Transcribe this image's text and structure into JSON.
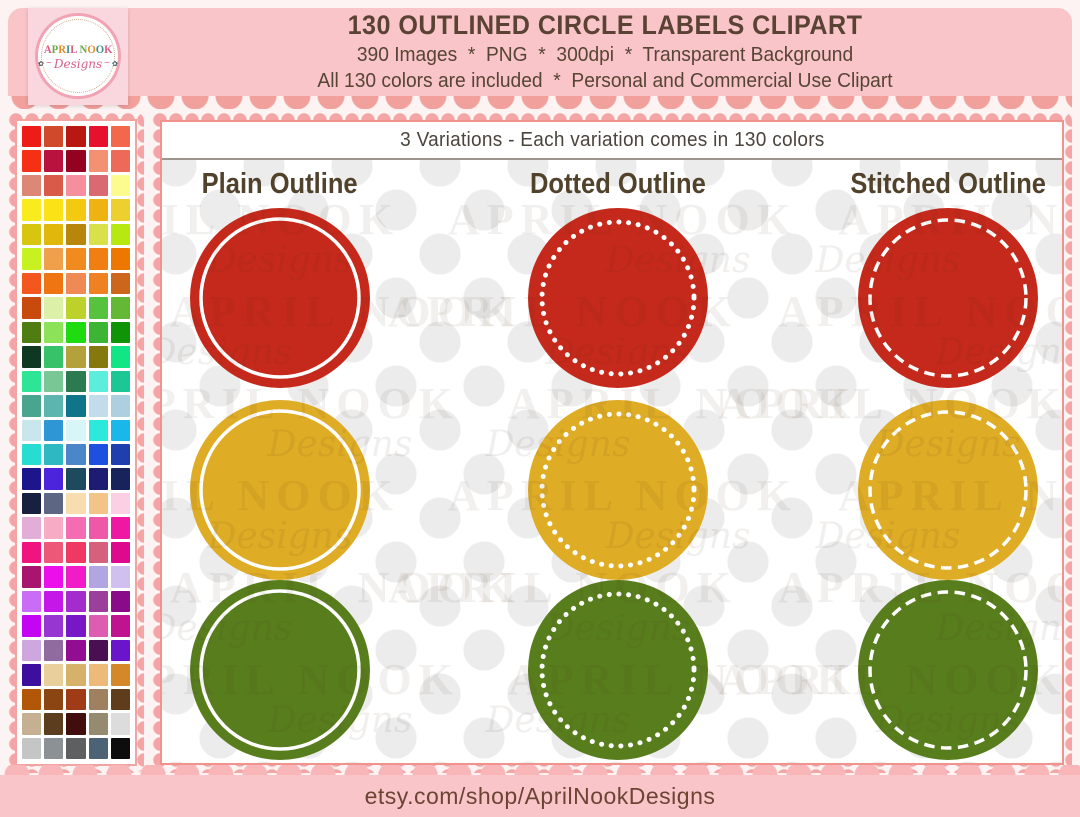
{
  "header": {
    "logo": {
      "name": "APRIL NOOK",
      "designs": "Designs",
      "flower": "✿",
      "swirl": "~",
      "letter_colors": [
        "#d95f87",
        "#6aa84f",
        "#e28e2b",
        "#3f8e8e"
      ]
    },
    "title": "130 OUTLINED CIRCLE LABELS CLIPART",
    "subtitle1": "390 Images  *  PNG  *  300dpi  *  Transparent Background",
    "subtitle2": "All 130 colors are included  *  Personal and Commercial Use Clipart"
  },
  "palette": {
    "columns": 5,
    "rows": 26,
    "colors": [
      "#ed1c16",
      "#d1492b",
      "#b91712",
      "#e8112d",
      "#f3684c",
      "#f53014",
      "#ba123e",
      "#930220",
      "#f29272",
      "#ee6a58",
      "#dd8877",
      "#da5a4a",
      "#f58f9e",
      "#d96a72",
      "#fbfb8e",
      "#f8ec1f",
      "#fbe216",
      "#f3c912",
      "#eeb211",
      "#edd02f",
      "#d8c50f",
      "#e0b80c",
      "#b8860b",
      "#d8e04a",
      "#b8e812",
      "#c8f122",
      "#f0a04a",
      "#f18a1f",
      "#f07e12",
      "#ee7700",
      "#f3571d",
      "#ee7511",
      "#f08a55",
      "#ef8122",
      "#cd661d",
      "#c84b0d",
      "#dcf0a8",
      "#bcd22a",
      "#56c23e",
      "#63b836",
      "#507d12",
      "#8ce35a",
      "#1fdc10",
      "#3cb434",
      "#0f9408",
      "#0e3822",
      "#37c168",
      "#b3a23c",
      "#85790e",
      "#12e586",
      "#2ee495",
      "#79c795",
      "#2b7a50",
      "#5beedd",
      "#1cc795",
      "#49a58d",
      "#5cb5ae",
      "#11758a",
      "#c3dcec",
      "#adcfe0",
      "#c8e6ec",
      "#2f96d6",
      "#d8f6f8",
      "#2ce9dc",
      "#1ab8ea",
      "#27dcd0",
      "#2eb9c2",
      "#4b87c8",
      "#1d50df",
      "#1f3fae",
      "#1c158c",
      "#4b24dc",
      "#1d4a5c",
      "#1d1c72",
      "#18235c",
      "#18203f",
      "#5d6683",
      "#f8ddb0",
      "#f3c488",
      "#fbd0e4",
      "#e2aed8",
      "#f8abc4",
      "#f46cb2",
      "#ef58a6",
      "#ee18a2",
      "#f0147e",
      "#ee5878",
      "#ee3a62",
      "#d5617c",
      "#dd0a8e",
      "#a8156e",
      "#ec0fec",
      "#f01cc8",
      "#b2a6e2",
      "#cfc0f0",
      "#c96cf6",
      "#c617e9",
      "#a52ccc",
      "#9c3e9c",
      "#8a0b8a",
      "#c305f3",
      "#9836d2",
      "#7817c5",
      "#de5cb2",
      "#c01390",
      "#cda7de",
      "#8f6b9f",
      "#930d93",
      "#4a0e52",
      "#6a14cc",
      "#3c0f9e",
      "#e9cf9b",
      "#d6b169",
      "#eeba79",
      "#d4882a",
      "#b25708",
      "#8a4513",
      "#a03b18",
      "#a0815f",
      "#5e3c1c",
      "#c5b091",
      "#5c3d1d",
      "#420d0d",
      "#968a71",
      "#dcdcdc",
      "#c4c6c6",
      "#8b9194",
      "#5d5f60",
      "#4c6375",
      "#0d0d0d"
    ]
  },
  "main": {
    "banner": "3 Variations - Each variation comes in 130 colors",
    "variations": [
      {
        "key": "plain",
        "label": "Plain Outline"
      },
      {
        "key": "dotted",
        "label": "Dotted Outline"
      },
      {
        "key": "stitched",
        "label": "Stitched Outline"
      }
    ],
    "circle_rows": [
      {
        "name": "red",
        "hex": "#c5291b"
      },
      {
        "name": "gold",
        "hex": "#dfac25"
      },
      {
        "name": "olive-green",
        "hex": "#587d1d"
      }
    ],
    "watermark": {
      "line1": "APRIL NOOK",
      "line2": "Designs"
    }
  },
  "footer": {
    "url": "etsy.com/shop/AprilNookDesigns"
  },
  "theme": {
    "page_bg": "#fdf3f3",
    "header_pink": "#f9c5c9",
    "scallop_salmon": "#f2a09c",
    "lace_dot": "#f4a6a6",
    "panel_border": "#f0938f",
    "text_brown": "#5a4334",
    "banner_rule": "#9e948c",
    "polka_dot": "#ececec",
    "footer_pink": "#f9c5c9",
    "logo_card_pink": "#fad7de",
    "logo_ring_pink": "#f0a3b3",
    "outline_white": "#ffffff"
  }
}
